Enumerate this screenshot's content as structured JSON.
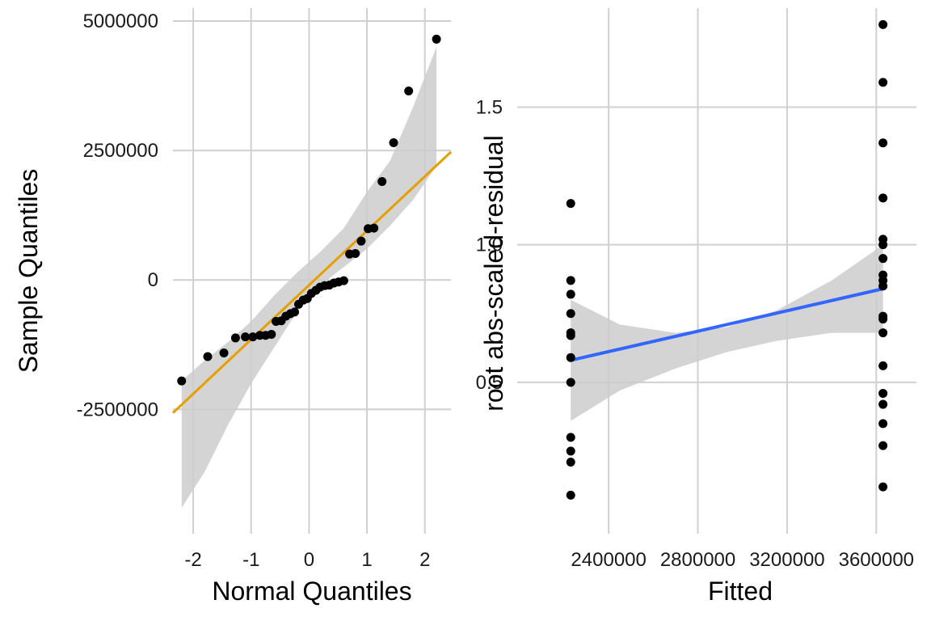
{
  "chart_data": [
    {
      "type": "scatter",
      "xlabel": "Normal Quantiles",
      "ylabel": "Sample Quantiles",
      "xlim": [
        -2.35,
        2.45
      ],
      "ylim": [
        -4900000,
        5250000
      ],
      "x_ticks": [
        -2,
        -1,
        0,
        1,
        2
      ],
      "x_tick_labels": [
        "-2",
        "-1",
        "0",
        "1",
        "2"
      ],
      "y_ticks": [
        -2500000,
        0,
        2500000,
        5000000
      ],
      "y_tick_labels": [
        "-2500000",
        "0",
        "2500000",
        "5000000"
      ],
      "grid": true,
      "colors": {
        "points": "#000000",
        "reference_line": "#E69F00",
        "band": "#CCCCCC"
      },
      "points": [
        {
          "x": -2.2,
          "y": -1950000
        },
        {
          "x": -1.75,
          "y": -1480000
        },
        {
          "x": -1.47,
          "y": -1410000
        },
        {
          "x": -1.27,
          "y": -1120000
        },
        {
          "x": -1.1,
          "y": -1100000
        },
        {
          "x": -0.97,
          "y": -1100000
        },
        {
          "x": -0.85,
          "y": -1070000
        },
        {
          "x": -0.75,
          "y": -1070000
        },
        {
          "x": -0.65,
          "y": -1050000
        },
        {
          "x": -0.57,
          "y": -800000
        },
        {
          "x": -0.48,
          "y": -790000
        },
        {
          "x": -0.4,
          "y": -700000
        },
        {
          "x": -0.32,
          "y": -650000
        },
        {
          "x": -0.25,
          "y": -620000
        },
        {
          "x": -0.18,
          "y": -470000
        },
        {
          "x": -0.1,
          "y": -390000
        },
        {
          "x": -0.03,
          "y": -360000
        },
        {
          "x": 0.04,
          "y": -260000
        },
        {
          "x": 0.12,
          "y": -200000
        },
        {
          "x": 0.19,
          "y": -140000
        },
        {
          "x": 0.27,
          "y": -110000
        },
        {
          "x": 0.35,
          "y": -100000
        },
        {
          "x": 0.43,
          "y": -60000
        },
        {
          "x": 0.51,
          "y": -40000
        },
        {
          "x": 0.6,
          "y": -15000
        },
        {
          "x": 0.7,
          "y": 500000
        },
        {
          "x": 0.8,
          "y": 510000
        },
        {
          "x": 0.9,
          "y": 750000
        },
        {
          "x": 1.02,
          "y": 990000
        },
        {
          "x": 1.12,
          "y": 1000000
        },
        {
          "x": 1.26,
          "y": 1900000
        },
        {
          "x": 1.46,
          "y": 2650000
        },
        {
          "x": 1.72,
          "y": 3650000
        },
        {
          "x": 2.2,
          "y": 4650000
        }
      ],
      "reference_line": {
        "intercept": -100000,
        "slope": 1050000
      },
      "band": {
        "x": [
          -2.2,
          -1.8,
          -1.4,
          -1.0,
          -0.6,
          -0.2,
          0.0,
          0.2,
          0.6,
          1.0,
          1.4,
          1.8,
          2.2
        ],
        "lower": [
          -4400000,
          -3700000,
          -2800000,
          -2000000,
          -1300000,
          -600000,
          -350000,
          -100000,
          250000,
          600000,
          1050000,
          1550000,
          2200000
        ],
        "upper": [
          -1950000,
          -1550000,
          -1200000,
          -800000,
          -300000,
          150000,
          350000,
          550000,
          1000000,
          1700000,
          2300000,
          3350000,
          4500000
        ]
      }
    },
    {
      "type": "scatter",
      "xlabel": "Fitted",
      "ylabel": "root abs-scaled-residual",
      "xlim": [
        1990000,
        3780000
      ],
      "ylim": [
        -0.05,
        1.86
      ],
      "x_ticks": [
        2400000,
        2800000,
        3200000,
        3600000
      ],
      "x_tick_labels": [
        "2400000",
        "2800000",
        "3200000",
        "3600000"
      ],
      "y_ticks": [
        0.5,
        1.0,
        1.5
      ],
      "y_tick_labels": [
        "0.5",
        "1.0",
        "1.5"
      ],
      "grid": true,
      "colors": {
        "points": "#000000",
        "smooth_line": "#3366FF",
        "band": "#CCCCCC"
      },
      "points": [
        {
          "x": 2230000,
          "y": 1.15
        },
        {
          "x": 2230000,
          "y": 0.87
        },
        {
          "x": 2230000,
          "y": 0.82
        },
        {
          "x": 2230000,
          "y": 0.75
        },
        {
          "x": 2230000,
          "y": 0.68
        },
        {
          "x": 2230000,
          "y": 0.67
        },
        {
          "x": 2230000,
          "y": 0.59
        },
        {
          "x": 2230000,
          "y": 0.5
        },
        {
          "x": 2230000,
          "y": 0.3
        },
        {
          "x": 2230000,
          "y": 0.25
        },
        {
          "x": 2230000,
          "y": 0.21
        },
        {
          "x": 2230000,
          "y": 0.09
        },
        {
          "x": 3630000,
          "y": 1.8
        },
        {
          "x": 3630000,
          "y": 1.59
        },
        {
          "x": 3630000,
          "y": 1.37
        },
        {
          "x": 3630000,
          "y": 1.17
        },
        {
          "x": 3630000,
          "y": 1.02
        },
        {
          "x": 3630000,
          "y": 1.0
        },
        {
          "x": 3630000,
          "y": 0.95
        },
        {
          "x": 3630000,
          "y": 0.89
        },
        {
          "x": 3630000,
          "y": 0.87
        },
        {
          "x": 3630000,
          "y": 0.85
        },
        {
          "x": 3630000,
          "y": 0.74
        },
        {
          "x": 3630000,
          "y": 0.73
        },
        {
          "x": 3630000,
          "y": 0.68
        },
        {
          "x": 3630000,
          "y": 0.56
        },
        {
          "x": 3630000,
          "y": 0.46
        },
        {
          "x": 3630000,
          "y": 0.42
        },
        {
          "x": 3630000,
          "y": 0.35
        },
        {
          "x": 3630000,
          "y": 0.27
        },
        {
          "x": 3630000,
          "y": 0.12
        }
      ],
      "smooth_line": {
        "x": [
          2230000,
          3630000
        ],
        "y": [
          0.58,
          0.84
        ]
      },
      "band": {
        "x": [
          2230000,
          2450000,
          2700000,
          2930000,
          3150000,
          3400000,
          3630000
        ],
        "lower": [
          0.36,
          0.47,
          0.55,
          0.61,
          0.65,
          0.68,
          0.68
        ],
        "upper": [
          0.8,
          0.71,
          0.68,
          0.7,
          0.76,
          0.87,
          1.0
        ]
      }
    }
  ]
}
